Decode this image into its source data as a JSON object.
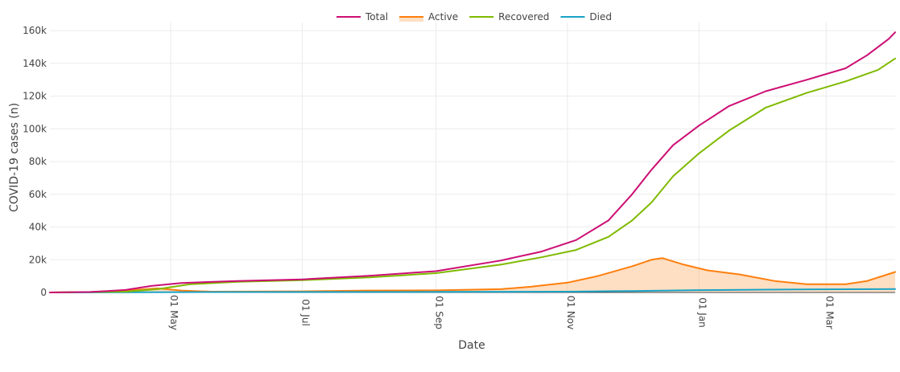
{
  "chart_data": {
    "type": "line",
    "xlabel": "Date",
    "ylabel": "COVID-19 cases (n)",
    "x_type": "date",
    "xlim": [
      "2020-03-06",
      "2021-04-02"
    ],
    "ylim": [
      0,
      165000
    ],
    "x_ticks": [
      {
        "date": "2020-05-01",
        "label": "01 May"
      },
      {
        "date": "2020-07-01",
        "label": "01 Jul"
      },
      {
        "date": "2020-09-01",
        "label": "01 Sep"
      },
      {
        "date": "2020-11-01",
        "label": "01 Nov"
      },
      {
        "date": "2021-01-01",
        "label": "01 Jan"
      },
      {
        "date": "2021-03-01",
        "label": "01 Mar"
      }
    ],
    "y_ticks": [
      {
        "value": 0,
        "label": "0"
      },
      {
        "value": 20000,
        "label": "20k"
      },
      {
        "value": 40000,
        "label": "40k"
      },
      {
        "value": 60000,
        "label": "60k"
      },
      {
        "value": 80000,
        "label": "80k"
      },
      {
        "value": 100000,
        "label": "100k"
      },
      {
        "value": 120000,
        "label": "120k"
      },
      {
        "value": 140000,
        "label": "140k"
      },
      {
        "value": 160000,
        "label": "160k"
      }
    ],
    "grid": true,
    "legend_position": "top-center",
    "series": [
      {
        "name": "Total",
        "color": "#cc0e74",
        "fill": false,
        "points": [
          [
            "2020-03-06",
            0
          ],
          [
            "2020-03-25",
            300
          ],
          [
            "2020-04-10",
            1500
          ],
          [
            "2020-04-22",
            4000
          ],
          [
            "2020-05-06",
            5800
          ],
          [
            "2020-06-01",
            7000
          ],
          [
            "2020-07-01",
            8000
          ],
          [
            "2020-08-01",
            10200
          ],
          [
            "2020-09-01",
            13000
          ],
          [
            "2020-10-01",
            19500
          ],
          [
            "2020-10-20",
            25000
          ],
          [
            "2020-11-05",
            32000
          ],
          [
            "2020-11-20",
            44000
          ],
          [
            "2020-12-01",
            60000
          ],
          [
            "2020-12-10",
            75000
          ],
          [
            "2020-12-20",
            90000
          ],
          [
            "2021-01-01",
            102000
          ],
          [
            "2021-01-15",
            114000
          ],
          [
            "2021-02-01",
            123000
          ],
          [
            "2021-02-20",
            130000
          ],
          [
            "2021-03-10",
            137000
          ],
          [
            "2021-03-20",
            145000
          ],
          [
            "2021-03-30",
            155000
          ],
          [
            "2021-04-02",
            159000
          ]
        ]
      },
      {
        "name": "Active",
        "color": "#ff7f0e",
        "fill": true,
        "points": [
          [
            "2020-03-06",
            0
          ],
          [
            "2020-03-25",
            300
          ],
          [
            "2020-04-10",
            1200
          ],
          [
            "2020-04-25",
            2500
          ],
          [
            "2020-05-06",
            1200
          ],
          [
            "2020-05-20",
            500
          ],
          [
            "2020-07-01",
            700
          ],
          [
            "2020-08-01",
            1200
          ],
          [
            "2020-09-01",
            1300
          ],
          [
            "2020-10-01",
            2000
          ],
          [
            "2020-10-15",
            3500
          ],
          [
            "2020-11-01",
            6000
          ],
          [
            "2020-11-15",
            10000
          ],
          [
            "2020-12-01",
            16000
          ],
          [
            "2020-12-10",
            20000
          ],
          [
            "2020-12-15",
            21000
          ],
          [
            "2020-12-25",
            17000
          ],
          [
            "2021-01-05",
            13500
          ],
          [
            "2021-01-20",
            11000
          ],
          [
            "2021-02-05",
            7000
          ],
          [
            "2021-02-20",
            5000
          ],
          [
            "2021-03-10",
            5000
          ],
          [
            "2021-03-20",
            7000
          ],
          [
            "2021-04-02",
            12500
          ]
        ]
      },
      {
        "name": "Recovered",
        "color": "#7fba00",
        "fill": false,
        "points": [
          [
            "2020-03-06",
            0
          ],
          [
            "2020-04-10",
            500
          ],
          [
            "2020-04-25",
            2000
          ],
          [
            "2020-05-10",
            5000
          ],
          [
            "2020-06-01",
            6500
          ],
          [
            "2020-07-01",
            7500
          ],
          [
            "2020-08-01",
            9200
          ],
          [
            "2020-09-01",
            11800
          ],
          [
            "2020-10-01",
            17000
          ],
          [
            "2020-10-20",
            21500
          ],
          [
            "2020-11-05",
            26000
          ],
          [
            "2020-11-20",
            34000
          ],
          [
            "2020-12-01",
            44000
          ],
          [
            "2020-12-10",
            55000
          ],
          [
            "2020-12-20",
            71000
          ],
          [
            "2021-01-01",
            85000
          ],
          [
            "2021-01-15",
            99000
          ],
          [
            "2021-02-01",
            113000
          ],
          [
            "2021-02-20",
            122000
          ],
          [
            "2021-03-10",
            129000
          ],
          [
            "2021-03-25",
            136000
          ],
          [
            "2021-04-02",
            143000
          ]
        ]
      },
      {
        "name": "Died",
        "color": "#17a2c6",
        "fill": false,
        "points": [
          [
            "2020-03-06",
            0
          ],
          [
            "2020-05-01",
            200
          ],
          [
            "2020-07-01",
            300
          ],
          [
            "2020-09-01",
            350
          ],
          [
            "2020-11-01",
            500
          ],
          [
            "2020-12-01",
            900
          ],
          [
            "2021-01-01",
            1400
          ],
          [
            "2021-02-01",
            1700
          ],
          [
            "2021-03-01",
            1900
          ],
          [
            "2021-04-02",
            2100
          ]
        ]
      }
    ]
  }
}
